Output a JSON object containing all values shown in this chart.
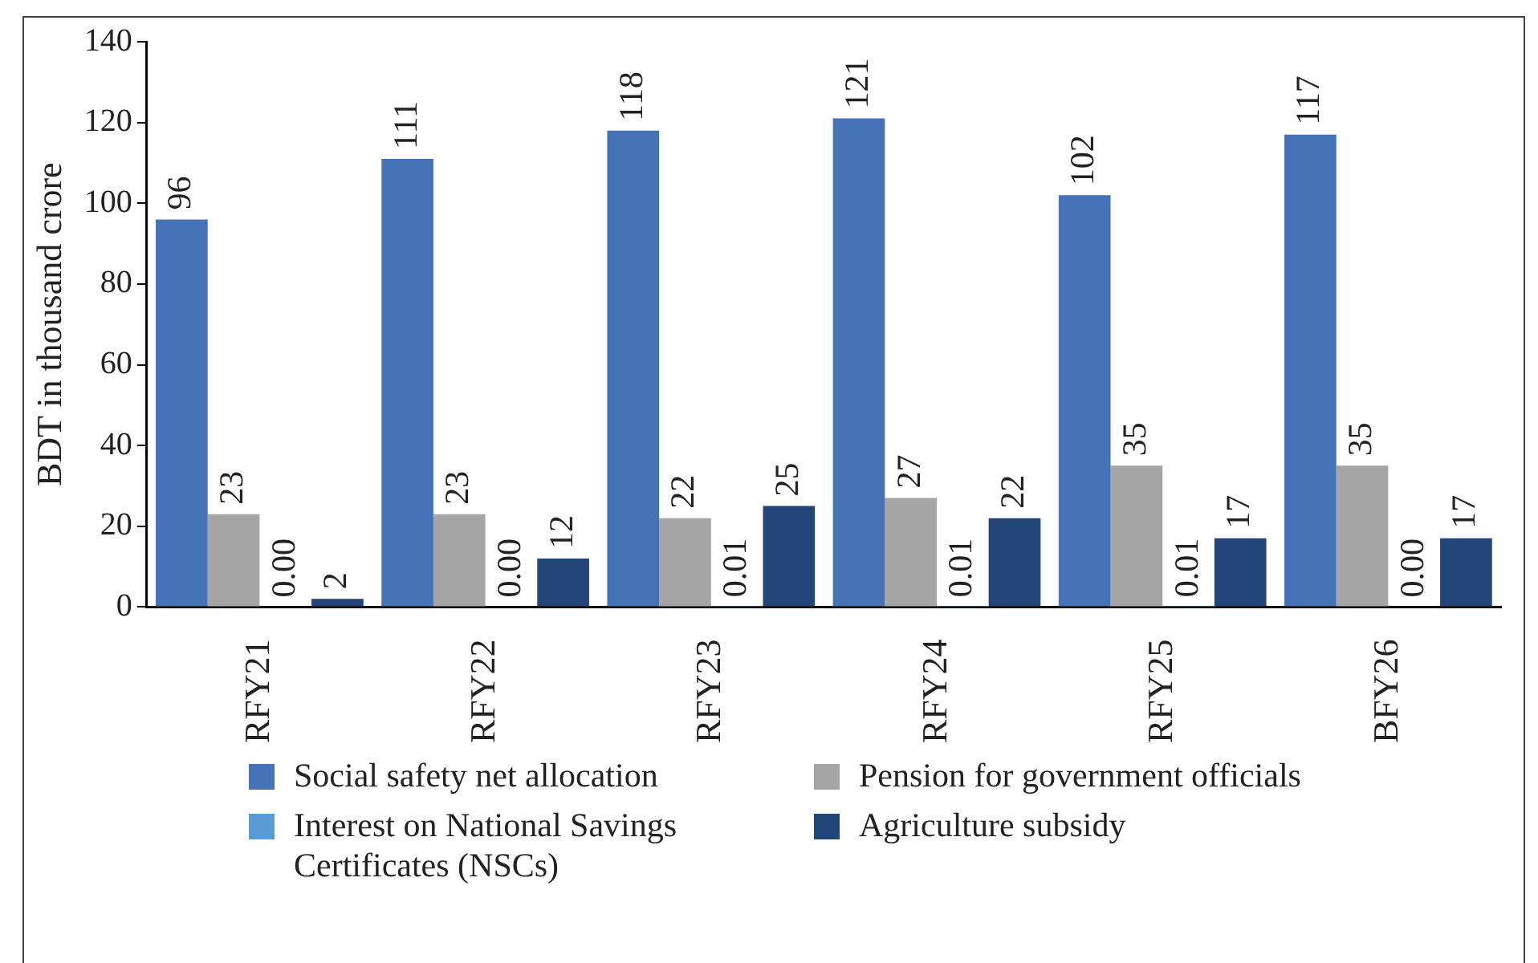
{
  "chart_data": {
    "type": "bar",
    "ylabel": "BDT in thousand crore",
    "categories": [
      "RFY21",
      "RFY22",
      "RFY23",
      "RFY24",
      "RFY25",
      "BFY26"
    ],
    "series": [
      {
        "name": "Social safety net allocation",
        "color": "#4672b8",
        "values": [
          96,
          111,
          118,
          121,
          102,
          117
        ],
        "value_labels": [
          "96",
          "111",
          "118",
          "121",
          "102",
          "117"
        ]
      },
      {
        "name": "Pension for government officials",
        "color": "#a5a5a5",
        "values": [
          23,
          23,
          22,
          27,
          35,
          35
        ],
        "value_labels": [
          "23",
          "23",
          "22",
          "27",
          "35",
          "35"
        ]
      },
      {
        "name": "Interest on National Savings Certificates (NSCs)",
        "color": "#5b9bd5",
        "values": [
          0,
          0,
          0.01,
          0.01,
          0.01,
          0
        ],
        "value_labels": [
          "0.00",
          "0.00",
          "0.01",
          "0.01",
          "0.01",
          "0.00"
        ]
      },
      {
        "name": "Agriculture subsidy",
        "color": "#244577",
        "values": [
          2,
          12,
          25,
          22,
          17,
          17
        ],
        "value_labels": [
          "2",
          "12",
          "25",
          "22",
          "17",
          "17"
        ]
      }
    ],
    "ylim": [
      0,
      140
    ],
    "yticks": [
      0,
      20,
      40,
      60,
      80,
      100,
      120,
      140
    ],
    "grid": false,
    "legend": "bottom"
  }
}
